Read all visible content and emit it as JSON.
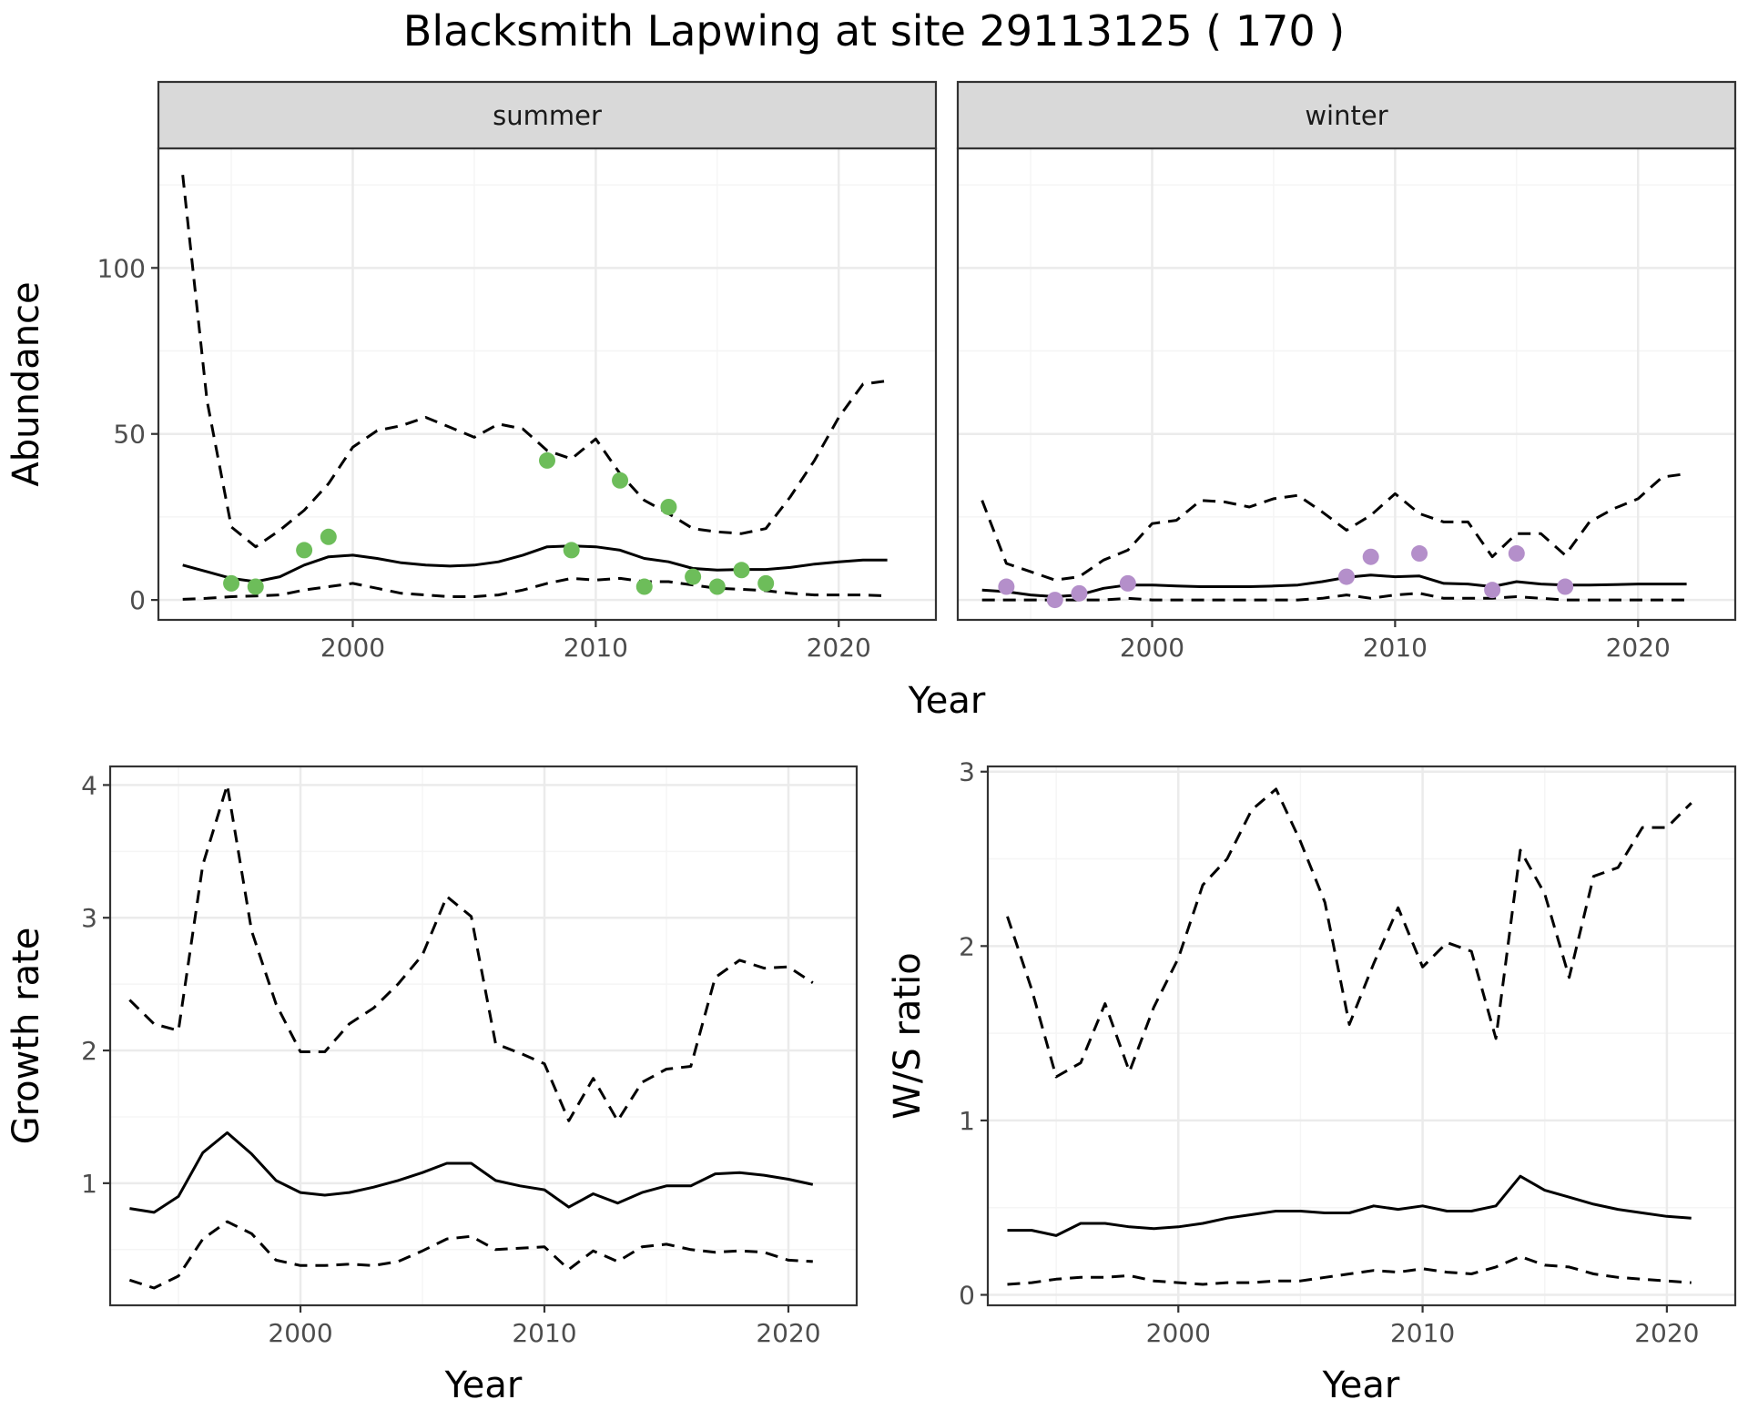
{
  "title": "Blacksmith Lapwing at site 29113125 ( 170 )",
  "colors": {
    "summer_points": "#6dbd5a",
    "winter_points": "#b48fca",
    "lines": "#000000",
    "strip_fill": "#d9d9d9",
    "grid_major": "#ebebeb",
    "grid_minor": "#f5f5f5"
  },
  "chart_data": [
    {
      "id": "abundance",
      "type": "line",
      "ylabel": "Abundance",
      "xlabel": "Year",
      "xlim": [
        1992,
        2024
      ],
      "ylim": [
        -6,
        136
      ],
      "x_ticks": [
        2000,
        2010,
        2020
      ],
      "y_ticks": [
        0,
        50,
        100
      ],
      "grid": true,
      "panels": [
        {
          "strip": "summer",
          "point_color": "summer_points",
          "mean": {
            "x": [
              1993,
              1994,
              1995,
              1996,
              1997,
              1998,
              1999,
              2000,
              2001,
              2002,
              2003,
              2004,
              2005,
              2006,
              2007,
              2008,
              2009,
              2010,
              2011,
              2012,
              2013,
              2014,
              2015,
              2016,
              2017,
              2018,
              2019,
              2020,
              2021,
              2022
            ],
            "y": [
              10.5,
              8.5,
              6.5,
              5.5,
              7,
              10.5,
              13,
              13.5,
              12.5,
              11.2,
              10.5,
              10.2,
              10.5,
              11.5,
              13.5,
              16,
              16.3,
              16,
              15,
              12.5,
              11.5,
              9.5,
              9,
              9.2,
              9.2,
              9.8,
              10.8,
              11.5,
              12,
              12
            ]
          },
          "upper": {
            "x": [
              1993,
              1994,
              1995,
              1996,
              1997,
              1998,
              1999,
              2000,
              2001,
              2002,
              2003,
              2004,
              2005,
              2006,
              2007,
              2008,
              2009,
              2010,
              2011,
              2012,
              2013,
              2014,
              2015,
              2016,
              2017,
              2018,
              2019,
              2020,
              2021,
              2022
            ],
            "y": [
              128,
              60,
              22,
              16,
              21,
              27,
              35,
              46,
              51,
              52.5,
              55,
              52,
              49,
              53,
              51.5,
              45,
              42.5,
              48.5,
              38,
              30,
              26,
              21.5,
              20.5,
              20,
              21.5,
              31,
              42,
              55,
              65,
              66
            ]
          },
          "lower": {
            "x": [
              1993,
              1994,
              1995,
              1996,
              1997,
              1998,
              1999,
              2000,
              2001,
              2002,
              2003,
              2004,
              2005,
              2006,
              2007,
              2008,
              2009,
              2010,
              2011,
              2012,
              2013,
              2014,
              2015,
              2016,
              2017,
              2018,
              2019,
              2020,
              2021,
              2022
            ],
            "y": [
              0.2,
              0.5,
              1,
              1.2,
              1.5,
              3,
              4,
              5,
              3.5,
              2,
              1.5,
              1,
              1,
              1.5,
              3,
              5,
              6.5,
              6,
              6.5,
              5.5,
              5.5,
              4.5,
              3.5,
              3.2,
              2.8,
              2,
              1.5,
              1.5,
              1.5,
              1.2
            ]
          },
          "observed": {
            "x": [
              1995,
              1996,
              1998,
              1999,
              2008,
              2009,
              2011,
              2012,
              2013,
              2014,
              2015,
              2016,
              2017
            ],
            "y": [
              5,
              4,
              15,
              19,
              42,
              15,
              36,
              4,
              28,
              7,
              4,
              9,
              5
            ]
          }
        },
        {
          "strip": "winter",
          "point_color": "winter_points",
          "mean": {
            "x": [
              1993,
              1994,
              1995,
              1996,
              1997,
              1998,
              1999,
              2000,
              2001,
              2002,
              2003,
              2004,
              2005,
              2006,
              2007,
              2008,
              2009,
              2010,
              2011,
              2012,
              2013,
              2014,
              2015,
              2016,
              2017,
              2018,
              2019,
              2020,
              2021,
              2022
            ],
            "y": [
              3,
              2.5,
              1.5,
              1,
              1.5,
              3.5,
              4.5,
              4.5,
              4.2,
              4,
              4,
              4,
              4.2,
              4.5,
              5.5,
              6.8,
              7.5,
              7,
              7.2,
              5,
              4.8,
              4,
              5.5,
              4.8,
              4.5,
              4.5,
              4.6,
              4.8,
              4.8,
              4.8
            ]
          },
          "upper": {
            "x": [
              1993,
              1994,
              1995,
              1996,
              1997,
              1998,
              1999,
              2000,
              2001,
              2002,
              2003,
              2004,
              2005,
              2006,
              2007,
              2008,
              2009,
              2010,
              2011,
              2012,
              2013,
              2014,
              2015,
              2016,
              2017,
              2018,
              2019,
              2020,
              2021,
              2022
            ],
            "y": [
              30,
              11,
              8.5,
              6,
              7,
              12,
              15,
              23,
              24,
              30,
              29.5,
              28,
              30.5,
              31.5,
              26.5,
              21,
              25.5,
              32,
              26,
              23.5,
              23.5,
              13,
              20,
              20,
              13.5,
              23.5,
              27.5,
              30.5,
              37,
              38
            ]
          },
          "lower": {
            "x": [
              1993,
              1994,
              1995,
              1996,
              1997,
              1998,
              1999,
              2000,
              2001,
              2002,
              2003,
              2004,
              2005,
              2006,
              2007,
              2008,
              2009,
              2010,
              2011,
              2012,
              2013,
              2014,
              2015,
              2016,
              2017,
              2018,
              2019,
              2020,
              2021,
              2022
            ],
            "y": [
              0,
              0,
              0,
              0,
              0,
              0,
              0.5,
              0,
              0,
              0,
              0,
              0,
              0,
              0,
              0.5,
              1.5,
              0.5,
              1.5,
              2,
              0.5,
              0.5,
              0.5,
              1,
              0.5,
              0,
              0,
              0,
              0,
              0,
              0
            ]
          },
          "observed": {
            "x": [
              1994,
              1996,
              1997,
              1999,
              2008,
              2009,
              2011,
              2014,
              2015,
              2017
            ],
            "y": [
              4,
              0,
              2,
              5,
              7,
              13,
              14,
              3,
              14,
              4
            ]
          }
        }
      ]
    },
    {
      "id": "growth",
      "type": "line",
      "ylabel": "Growth rate",
      "xlabel": "Year",
      "xlim": [
        1992.2,
        2022.8
      ],
      "ylim": [
        0.08,
        4.14
      ],
      "x_ticks": [
        2000,
        2010,
        2020
      ],
      "y_ticks": [
        1,
        2,
        3,
        4
      ],
      "grid": true,
      "mean": {
        "x": [
          1993,
          1994,
          1995,
          1996,
          1997,
          1998,
          1999,
          2000,
          2001,
          2002,
          2003,
          2004,
          2005,
          2006,
          2007,
          2008,
          2009,
          2010,
          2011,
          2012,
          2013,
          2014,
          2015,
          2016,
          2017,
          2018,
          2019,
          2020,
          2021
        ],
        "y": [
          0.81,
          0.78,
          0.9,
          1.23,
          1.38,
          1.22,
          1.02,
          0.93,
          0.91,
          0.93,
          0.97,
          1.02,
          1.08,
          1.15,
          1.15,
          1.02,
          0.98,
          0.95,
          0.82,
          0.92,
          0.85,
          0.93,
          0.98,
          0.98,
          1.07,
          1.08,
          1.06,
          1.03,
          0.99
        ]
      },
      "upper": {
        "x": [
          1993,
          1994,
          1995,
          1996,
          1997,
          1998,
          1999,
          2000,
          2001,
          2002,
          2003,
          2004,
          2005,
          2006,
          2007,
          2008,
          2009,
          2010,
          2011,
          2012,
          2013,
          2014,
          2015,
          2016,
          2017,
          2018,
          2019,
          2020,
          2021
        ],
        "y": [
          2.38,
          2.2,
          2.15,
          3.4,
          4.0,
          2.9,
          2.35,
          1.99,
          1.99,
          2.2,
          2.32,
          2.5,
          2.72,
          3.16,
          3.01,
          2.05,
          1.98,
          1.9,
          1.47,
          1.79,
          1.47,
          1.76,
          1.86,
          1.88,
          2.55,
          2.68,
          2.62,
          2.63,
          2.51
        ]
      },
      "lower": {
        "x": [
          1993,
          1994,
          1995,
          1996,
          1997,
          1998,
          1999,
          2000,
          2001,
          2002,
          2003,
          2004,
          2005,
          2006,
          2007,
          2008,
          2009,
          2010,
          2011,
          2012,
          2013,
          2014,
          2015,
          2016,
          2017,
          2018,
          2019,
          2020,
          2021
        ],
        "y": [
          0.27,
          0.21,
          0.3,
          0.58,
          0.71,
          0.62,
          0.42,
          0.38,
          0.38,
          0.39,
          0.38,
          0.41,
          0.49,
          0.58,
          0.6,
          0.5,
          0.51,
          0.52,
          0.35,
          0.49,
          0.41,
          0.52,
          0.54,
          0.5,
          0.48,
          0.49,
          0.48,
          0.42,
          0.41
        ]
      }
    },
    {
      "id": "ws_ratio",
      "type": "line",
      "ylabel": "W/S ratio",
      "xlabel": "Year",
      "xlim": [
        1992.2,
        2022.8
      ],
      "ylim": [
        -0.06,
        3.03
      ],
      "x_ticks": [
        2000,
        2010,
        2020
      ],
      "y_ticks": [
        0,
        1,
        2,
        3
      ],
      "grid": true,
      "mean": {
        "x": [
          1993,
          1994,
          1995,
          1996,
          1997,
          1998,
          1999,
          2000,
          2001,
          2002,
          2003,
          2004,
          2005,
          2006,
          2007,
          2008,
          2009,
          2010,
          2011,
          2012,
          2013,
          2014,
          2015,
          2016,
          2017,
          2018,
          2019,
          2020,
          2021
        ],
        "y": [
          0.37,
          0.37,
          0.34,
          0.41,
          0.41,
          0.39,
          0.38,
          0.39,
          0.41,
          0.44,
          0.46,
          0.48,
          0.48,
          0.47,
          0.47,
          0.51,
          0.49,
          0.51,
          0.48,
          0.48,
          0.51,
          0.68,
          0.6,
          0.56,
          0.52,
          0.49,
          0.47,
          0.45,
          0.44
        ]
      },
      "upper": {
        "x": [
          1993,
          1994,
          1995,
          1996,
          1997,
          1998,
          1999,
          2000,
          2001,
          2002,
          2003,
          2004,
          2005,
          2006,
          2007,
          2008,
          2009,
          2010,
          2011,
          2012,
          2013,
          2014,
          2015,
          2016,
          2017,
          2018,
          2019,
          2020,
          2021
        ],
        "y": [
          2.17,
          1.75,
          1.25,
          1.33,
          1.67,
          1.28,
          1.65,
          1.93,
          2.35,
          2.5,
          2.78,
          2.9,
          2.6,
          2.25,
          1.55,
          1.9,
          2.22,
          1.88,
          2.02,
          1.97,
          1.47,
          2.55,
          2.3,
          1.82,
          2.4,
          2.45,
          2.68,
          2.68,
          2.82
        ]
      },
      "lower": {
        "x": [
          1993,
          1994,
          1995,
          1996,
          1997,
          1998,
          1999,
          2000,
          2001,
          2002,
          2003,
          2004,
          2005,
          2006,
          2007,
          2008,
          2009,
          2010,
          2011,
          2012,
          2013,
          2014,
          2015,
          2016,
          2017,
          2018,
          2019,
          2020,
          2021
        ],
        "y": [
          0.06,
          0.07,
          0.09,
          0.1,
          0.1,
          0.11,
          0.08,
          0.07,
          0.06,
          0.07,
          0.07,
          0.08,
          0.08,
          0.1,
          0.12,
          0.14,
          0.13,
          0.15,
          0.13,
          0.12,
          0.16,
          0.22,
          0.17,
          0.16,
          0.12,
          0.1,
          0.09,
          0.08,
          0.07
        ]
      }
    }
  ]
}
